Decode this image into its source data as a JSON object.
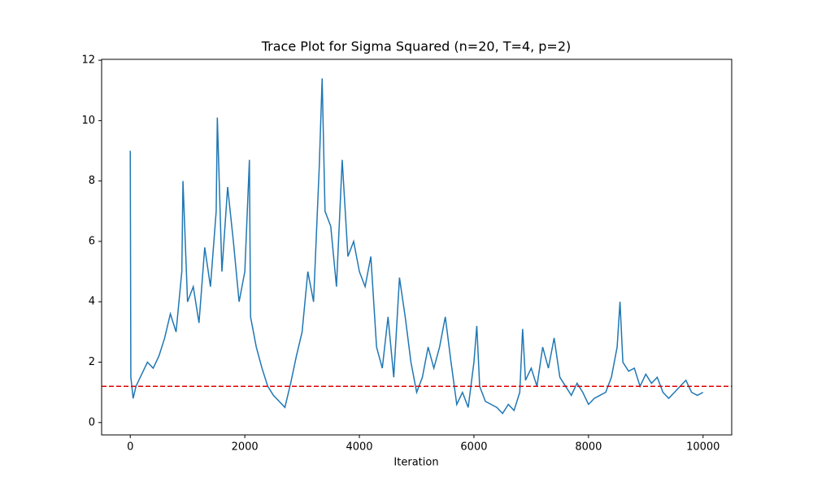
{
  "chart_data": {
    "type": "line",
    "title": "Trace Plot for Sigma Squared (n=20, T=4, p=2)",
    "x_label": "Iteration",
    "x": [
      0,
      10,
      50,
      100,
      200,
      300,
      400,
      500,
      600,
      700,
      800,
      900,
      920,
      1000,
      1100,
      1200,
      1300,
      1400,
      1500,
      1520,
      1600,
      1700,
      1800,
      1900,
      2000,
      2080,
      2100,
      2200,
      2300,
      2400,
      2500,
      2600,
      2700,
      2800,
      2900,
      3000,
      3100,
      3200,
      3300,
      3350,
      3400,
      3500,
      3600,
      3700,
      3800,
      3900,
      4000,
      4100,
      4200,
      4300,
      4400,
      4500,
      4600,
      4700,
      4800,
      4900,
      5000,
      5100,
      5200,
      5300,
      5400,
      5500,
      5600,
      5700,
      5800,
      5900,
      6000,
      6050,
      6100,
      6200,
      6300,
      6400,
      6500,
      6600,
      6700,
      6800,
      6850,
      6900,
      7000,
      7100,
      7200,
      7300,
      7400,
      7500,
      7600,
      7700,
      7800,
      7900,
      8000,
      8100,
      8200,
      8300,
      8400,
      8500,
      8550,
      8600,
      8700,
      8800,
      8900,
      9000,
      9100,
      9200,
      9300,
      9400,
      9500,
      9600,
      9700,
      9800,
      9900,
      10000
    ],
    "series": [
      {
        "color": "#1f77b4",
        "values": [
          9.0,
          1.5,
          0.8,
          1.2,
          1.6,
          2.0,
          1.8,
          2.2,
          2.8,
          3.6,
          3.0,
          5.0,
          8.0,
          4.0,
          4.5,
          3.3,
          5.8,
          4.5,
          7.0,
          10.1,
          5.0,
          7.8,
          6.0,
          4.0,
          5.0,
          8.7,
          3.5,
          2.5,
          1.8,
          1.2,
          0.9,
          0.7,
          0.5,
          1.3,
          2.2,
          3.0,
          5.0,
          4.0,
          8.5,
          11.4,
          7.0,
          6.5,
          4.5,
          8.7,
          5.5,
          6.0,
          5.0,
          4.5,
          5.5,
          2.5,
          1.8,
          3.5,
          1.5,
          4.8,
          3.5,
          2.0,
          1.0,
          1.5,
          2.5,
          1.8,
          2.5,
          3.5,
          2.0,
          0.6,
          1.0,
          0.5,
          2.0,
          3.2,
          1.2,
          0.7,
          0.6,
          0.5,
          0.3,
          0.6,
          0.4,
          1.0,
          3.1,
          1.4,
          1.8,
          1.2,
          2.5,
          1.8,
          2.8,
          1.5,
          1.2,
          0.9,
          1.3,
          1.0,
          0.6,
          0.8,
          0.9,
          1.0,
          1.5,
          2.5,
          4.0,
          2.0,
          1.7,
          1.8,
          1.2,
          1.6,
          1.3,
          1.5,
          1.0,
          0.8,
          1.0,
          1.2,
          1.4,
          1.0,
          0.9,
          1.0
        ]
      }
    ],
    "reference_line": {
      "value": 1.2,
      "color": "#e00000",
      "style": "dashed"
    },
    "xlim": [
      -500,
      10500
    ],
    "xticks": [
      0,
      2000,
      4000,
      6000,
      8000,
      10000
    ],
    "ylim": [
      -0.41,
      12.03
    ],
    "yticks": [
      0,
      2,
      4,
      6,
      8,
      10,
      12
    ]
  }
}
